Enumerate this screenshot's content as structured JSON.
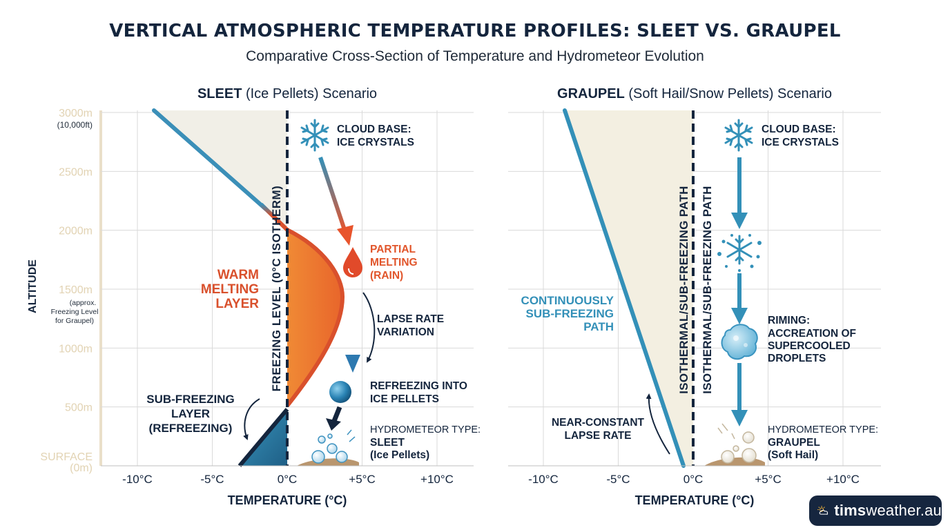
{
  "header": {
    "title": "VERTICAL ATMOSPHERIC TEMPERATURE PROFILES: SLEET VS. GRAUPEL",
    "subtitle": "Comparative Cross-Section of Temperature and Hydrometeor Evolution"
  },
  "axes": {
    "y_label": "ALTITUDE",
    "x_label": "TEMPERATURE (°C)",
    "y_ticks": [
      {
        "value": 3000,
        "label": "3000m",
        "sub": "(10,000ft)"
      },
      {
        "value": 2500,
        "label": "2500m"
      },
      {
        "value": 2000,
        "label": "2000m"
      },
      {
        "value": 1500,
        "label": "1500m",
        "sub": "(approx. Freezing Level for Graupel)"
      },
      {
        "value": 1000,
        "label": "1000m"
      },
      {
        "value": 500,
        "label": "500m"
      },
      {
        "value": 0,
        "label": "SURFACE",
        "sub": "(0m)"
      }
    ],
    "y_note_lines": [
      "(approx.",
      "Freezing Level",
      "for Graupel)"
    ],
    "x_ticks": [
      {
        "value": -10,
        "label": "-10°C"
      },
      {
        "value": -5,
        "label": "-5°C"
      },
      {
        "value": 0,
        "label": "0°C"
      },
      {
        "value": 5,
        "label": "+5°C"
      },
      {
        "value": 10,
        "label": "+10°C"
      }
    ]
  },
  "sleet": {
    "title_bold": "SLEET",
    "title_rest": " (Ice Pellets) Scenario",
    "freezing_label": "FREEZING LEVEL (0°C ISOTHERM)",
    "warm_layer_lines": [
      "WARM",
      "MELTING",
      "LAYER"
    ],
    "sub_freezing_lines": [
      "SUB-FREEZING",
      "LAYER",
      "(REFREEZING)"
    ],
    "cloud_base_lines": [
      "CLOUD BASE:",
      "ICE CRYSTALS"
    ],
    "partial_melting_lines": [
      "PARTIAL",
      "MELTING",
      "(RAIN)"
    ],
    "lapse_rate_lines": [
      "LAPSE RATE",
      "VARIATION"
    ],
    "refreezing_lines": [
      "REFREEZING INTO",
      "ICE PELLETS"
    ],
    "hydrometeor_type": "HYDROMETEOR TYPE:",
    "hydrometeor_lines": [
      "SLEET",
      "(Ice Pellets)"
    ],
    "profile": [
      {
        "temp": -8.8,
        "alt": 3000
      },
      {
        "temp": -1.2,
        "alt": 2150
      },
      {
        "temp": 0,
        "alt": 2010
      },
      {
        "temp": 3.4,
        "alt": 1500
      },
      {
        "temp": 2.6,
        "alt": 1000
      },
      {
        "temp": 0,
        "alt": 480
      },
      {
        "temp": -3.2,
        "alt": 0
      }
    ]
  },
  "graupel": {
    "title_bold": "GRAUPEL",
    "title_rest": " (Soft Hail/Snow Pellets) Scenario",
    "isothermal_label": "ISOTHERMAL/SUB-FREEZING PATH",
    "continuous_lines": [
      "CONTINUOUSLY",
      "SUB-FREEZING",
      "PATH"
    ],
    "near_constant_lines": [
      "NEAR-CONSTANT",
      "LAPSE RATE"
    ],
    "cloud_base_lines": [
      "CLOUD BASE:",
      "ICE CRYSTALS"
    ],
    "riming_lines": [
      "RIMING:",
      "ACCREATION OF",
      "SUPERCOOLED",
      "DROPLETS"
    ],
    "hydrometeor_type": "HYDROMETEOR TYPE:",
    "hydrometeor_lines": [
      "GRAUPEL",
      "(Soft Hail)"
    ],
    "profile": [
      {
        "temp": -8.8,
        "alt": 3000
      },
      {
        "temp": -0.6,
        "alt": 0
      }
    ]
  },
  "colors": {
    "navy": "#14253d",
    "blue": "#3390b8",
    "orange": "#e8782b",
    "red": "#d9502c",
    "tan": "#e8dcc8",
    "grid": "#d8d8d8",
    "shade": "#f1efe7"
  },
  "brand": {
    "name_bold": "tims",
    "name_rest": "weather.au"
  }
}
